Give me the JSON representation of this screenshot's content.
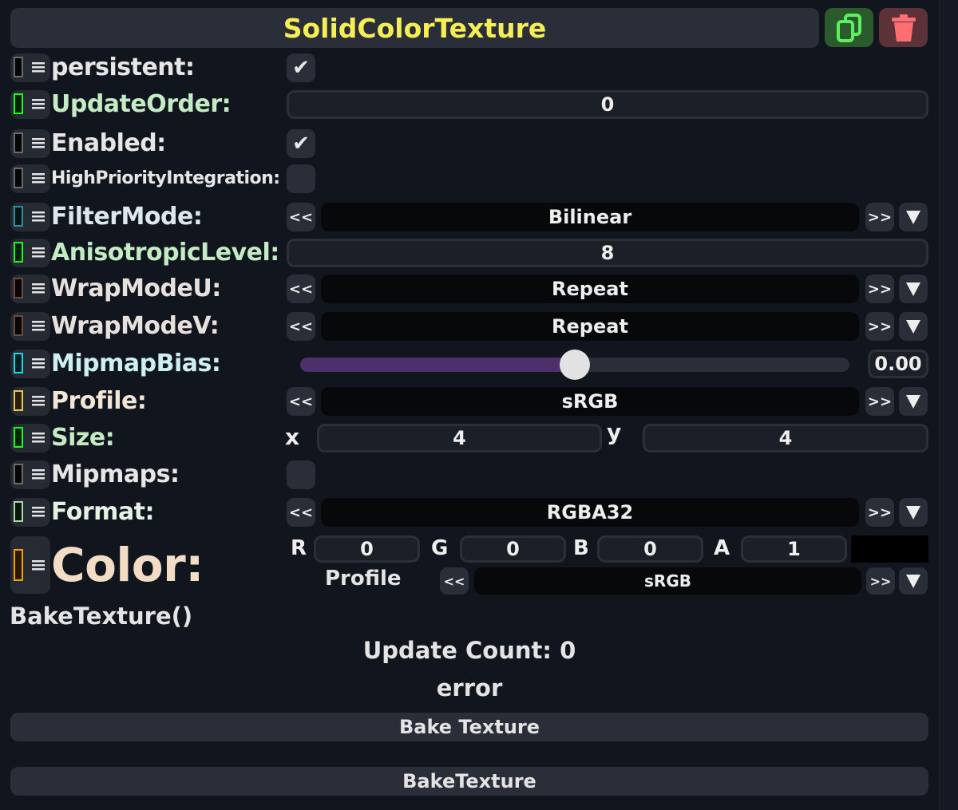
{
  "component": {
    "title": "SolidColorTexture",
    "duplicate_icon": "copy-icon",
    "delete_icon": "trash-icon",
    "duplicate_color": "#2b5a2d",
    "delete_color": "#5c3238"
  },
  "fields": {
    "persistent": {
      "label": "persistent:",
      "checked": true
    },
    "update_order": {
      "label": "UpdateOrder:",
      "value": "0"
    },
    "enabled": {
      "label": "Enabled:",
      "checked": true
    },
    "high_priority": {
      "label": "HighPriorityIntegration:",
      "checked": false
    },
    "filter_mode": {
      "label": "FilterMode:",
      "value": "Bilinear"
    },
    "anisotropic": {
      "label": "AnisotropicLevel:",
      "value": "8"
    },
    "wrap_u": {
      "label": "WrapModeU:",
      "value": "Repeat"
    },
    "wrap_v": {
      "label": "WrapModeV:",
      "value": "Repeat"
    },
    "mipmap_bias": {
      "label": "MipmapBias:",
      "value": "0.00",
      "slider_fraction": 0.5,
      "fill_color": "#4e2f6b"
    },
    "profile": {
      "label": "Profile:",
      "value": "sRGB"
    },
    "size": {
      "label": "Size:",
      "x_label": "x",
      "x": "4",
      "y_label": "y",
      "y": "4"
    },
    "mipmaps": {
      "label": "Mipmaps:",
      "checked": false
    },
    "format": {
      "label": "Format:",
      "value": "RGBA32"
    },
    "color": {
      "label": "Color:",
      "r_label": "R",
      "r": "0",
      "g_label": "G",
      "g": "0",
      "b_label": "B",
      "b": "0",
      "a_label": "A",
      "a": "1",
      "swatch": "#000000",
      "profile_label": "Profile",
      "profile": "sRGB"
    }
  },
  "enum_prev": "<<",
  "enum_next": ">>",
  "check_mark": "✔",
  "method": {
    "label": "BakeTexture()",
    "update_count": "Update Count: 0",
    "status": "error",
    "bake_button": "Bake Texture",
    "bake_button2": "BakeTexture"
  }
}
